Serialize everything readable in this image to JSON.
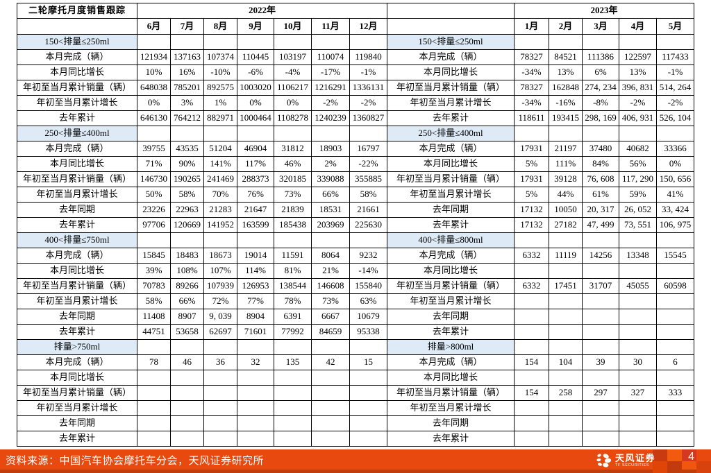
{
  "table": {
    "title": "二轮摩托月度销售跟踪",
    "year_left": "2022年",
    "year_right": "2023年",
    "months_2022": [
      "6月",
      "7月",
      "8月",
      "9月",
      "10月",
      "11月",
      "12月"
    ],
    "months_2023": [
      "1月",
      "2月",
      "3月",
      "4月",
      "5月"
    ],
    "sections": [
      {
        "left_title": "150<排量≤250ml",
        "right_title": "150<排量≤250ml",
        "rows": [
          {
            "label": "本月完成（辆）",
            "v2022": [
              "121934",
              "137163",
              "107374",
              "110445",
              "103197",
              "110074",
              "119840"
            ],
            "v2023": [
              "78327",
              "84521",
              "111386",
              "122597",
              "117433"
            ]
          },
          {
            "label": "本月同比增长",
            "v2022": [
              "10%",
              "16%",
              "-10%",
              "-6%",
              "-4%",
              "-17%",
              "-1%"
            ],
            "v2023": [
              "-34%",
              "13%",
              "6%",
              "13%",
              "-1%"
            ]
          },
          {
            "label": "年初至当月累计销量（辆）",
            "v2022": [
              "648038",
              "785201",
              "892575",
              "1003020",
              "1106217",
              "1216291",
              "1336131"
            ],
            "v2023": [
              "78327",
              "162848",
              "274, 234",
              "396, 831",
              "514, 264"
            ]
          },
          {
            "label": "年初至当月累计增长",
            "v2022": [
              "0%",
              "3%",
              "1%",
              "0%",
              "0%",
              "-2%",
              "-2%"
            ],
            "v2023": [
              "-34%",
              "-16%",
              "-8%",
              "-2%",
              "-2%"
            ]
          },
          {
            "label": "去年累计",
            "v2022": [
              "646130",
              "764212",
              "882971",
              "1000464",
              "1108278",
              "1240239",
              "1360827"
            ],
            "v2023": [
              "118611",
              "193415",
              "298, 169",
              "406, 931",
              "526, 104"
            ]
          }
        ]
      },
      {
        "left_title": "250<排量≤400ml",
        "right_title": "250<排量≤400ml",
        "rows": [
          {
            "label": "本月完成（辆）",
            "v2022": [
              "39755",
              "43535",
              "51204",
              "46904",
              "31812",
              "18903",
              "16797"
            ],
            "v2023": [
              "17931",
              "21197",
              "37480",
              "40682",
              "33366"
            ]
          },
          {
            "label": "本月同比增长",
            "v2022": [
              "71%",
              "90%",
              "141%",
              "117%",
              "46%",
              "2%",
              "-22%"
            ],
            "v2023": [
              "5%",
              "111%",
              "84%",
              "56%",
              "0%"
            ]
          },
          {
            "label": "年初至当月累计销量（辆）",
            "v2022": [
              "146730",
              "190265",
              "241469",
              "288373",
              "320185",
              "339088",
              "355885"
            ],
            "v2023": [
              "17931",
              "39128",
              "76, 608",
              "117, 290",
              "150, 656"
            ]
          },
          {
            "label": "年初至当月累计增长",
            "v2022": [
              "50%",
              "58%",
              "70%",
              "76%",
              "73%",
              "66%",
              "58%"
            ],
            "v2023": [
              "5%",
              "44%",
              "61%",
              "59%",
              "41%"
            ]
          },
          {
            "label": "去年同期",
            "v2022": [
              "23226",
              "22963",
              "21283",
              "21647",
              "21839",
              "18531",
              "21661"
            ],
            "v2023": [
              "17132",
              "10050",
              "20, 317",
              "26, 052",
              "33, 424"
            ]
          },
          {
            "label": "去年累计",
            "v2022": [
              "97706",
              "120669",
              "141952",
              "163599",
              "185438",
              "203969",
              "225630"
            ],
            "v2023": [
              "17132",
              "27182",
              "47, 499",
              "73, 551",
              "106, 975"
            ]
          }
        ]
      },
      {
        "left_title": "400<排量≤750ml",
        "right_title": "400<排量≤800ml",
        "rows": [
          {
            "label": "本月完成（辆）",
            "v2022": [
              "15845",
              "18483",
              "18673",
              "19014",
              "11591",
              "8064",
              "9232"
            ],
            "v2023": [
              "6332",
              "11119",
              "14256",
              "13348",
              "15545"
            ]
          },
          {
            "label": "本月同比增长",
            "v2022": [
              "39%",
              "108%",
              "107%",
              "114%",
              "81%",
              "21%",
              "-14%"
            ],
            "v2023": [
              "",
              "",
              "",
              "",
              ""
            ]
          },
          {
            "label": "年初至当月累计销量（辆）",
            "v2022": [
              "70783",
              "89266",
              "107939",
              "126953",
              "138544",
              "146608",
              "155840"
            ],
            "v2023": [
              "6332",
              "17451",
              "31707",
              "45055",
              "60598"
            ]
          },
          {
            "label": "年初至当月累计增长",
            "v2022": [
              "58%",
              "66%",
              "72%",
              "77%",
              "78%",
              "73%",
              "63%"
            ],
            "v2023": [
              "",
              "",
              "",
              "",
              ""
            ]
          },
          {
            "label": "去年同期",
            "v2022": [
              "11408",
              "8907",
              "9, 039",
              "8904",
              "6391",
              "6667",
              "10679"
            ],
            "v2023": [
              "",
              "",
              "",
              "",
              ""
            ]
          },
          {
            "label": "去年累计",
            "v2022": [
              "44751",
              "53658",
              "62697",
              "71601",
              "77992",
              "84659",
              "95338"
            ],
            "v2023": [
              "",
              "",
              "",
              "",
              ""
            ]
          }
        ]
      },
      {
        "left_title": "排量>750ml",
        "right_title": "排量>800ml",
        "rows": [
          {
            "label": "本月完成（辆）",
            "v2022": [
              "78",
              "46",
              "36",
              "32",
              "135",
              "42",
              "15"
            ],
            "v2023": [
              "154",
              "104",
              "39",
              "30",
              "6"
            ]
          },
          {
            "label": "本月同比增长",
            "v2022": [
              "",
              "",
              "",
              "",
              "",
              "",
              ""
            ],
            "v2023": [
              "",
              "",
              "",
              "",
              ""
            ]
          },
          {
            "label": "年初至当月累计销量（辆）",
            "v2022": [
              "",
              "",
              "",
              "",
              "",
              "",
              ""
            ],
            "v2023": [
              "154",
              "258",
              "297",
              "327",
              "333"
            ]
          },
          {
            "label": "年初至当月累计增长",
            "v2022": [
              "",
              "",
              "",
              "",
              "",
              "",
              ""
            ],
            "v2023": [
              "",
              "",
              "",
              "",
              ""
            ]
          },
          {
            "label": "去年同期",
            "v2022": [
              "",
              "",
              "",
              "",
              "",
              "",
              ""
            ],
            "v2023": [
              "",
              "",
              "",
              "",
              ""
            ]
          },
          {
            "label": "去年累计",
            "v2022": [
              "",
              "",
              "",
              "",
              "",
              "",
              ""
            ],
            "v2023": [
              "",
              "",
              "",
              "",
              ""
            ]
          }
        ]
      }
    ]
  },
  "footer": {
    "source": "资料来源：中国汽车协会摩托车分会，天风证券研究所",
    "logo_cn": "天风证券",
    "logo_en": "TF SECURITIES",
    "page": "4"
  },
  "colors": {
    "header_red": "#ff0000",
    "section_bg": "#deebf7",
    "footer_orange": "#e8490f",
    "footer_dark_strip": "#bf3d0c",
    "page_square_red": "#d5381f"
  }
}
